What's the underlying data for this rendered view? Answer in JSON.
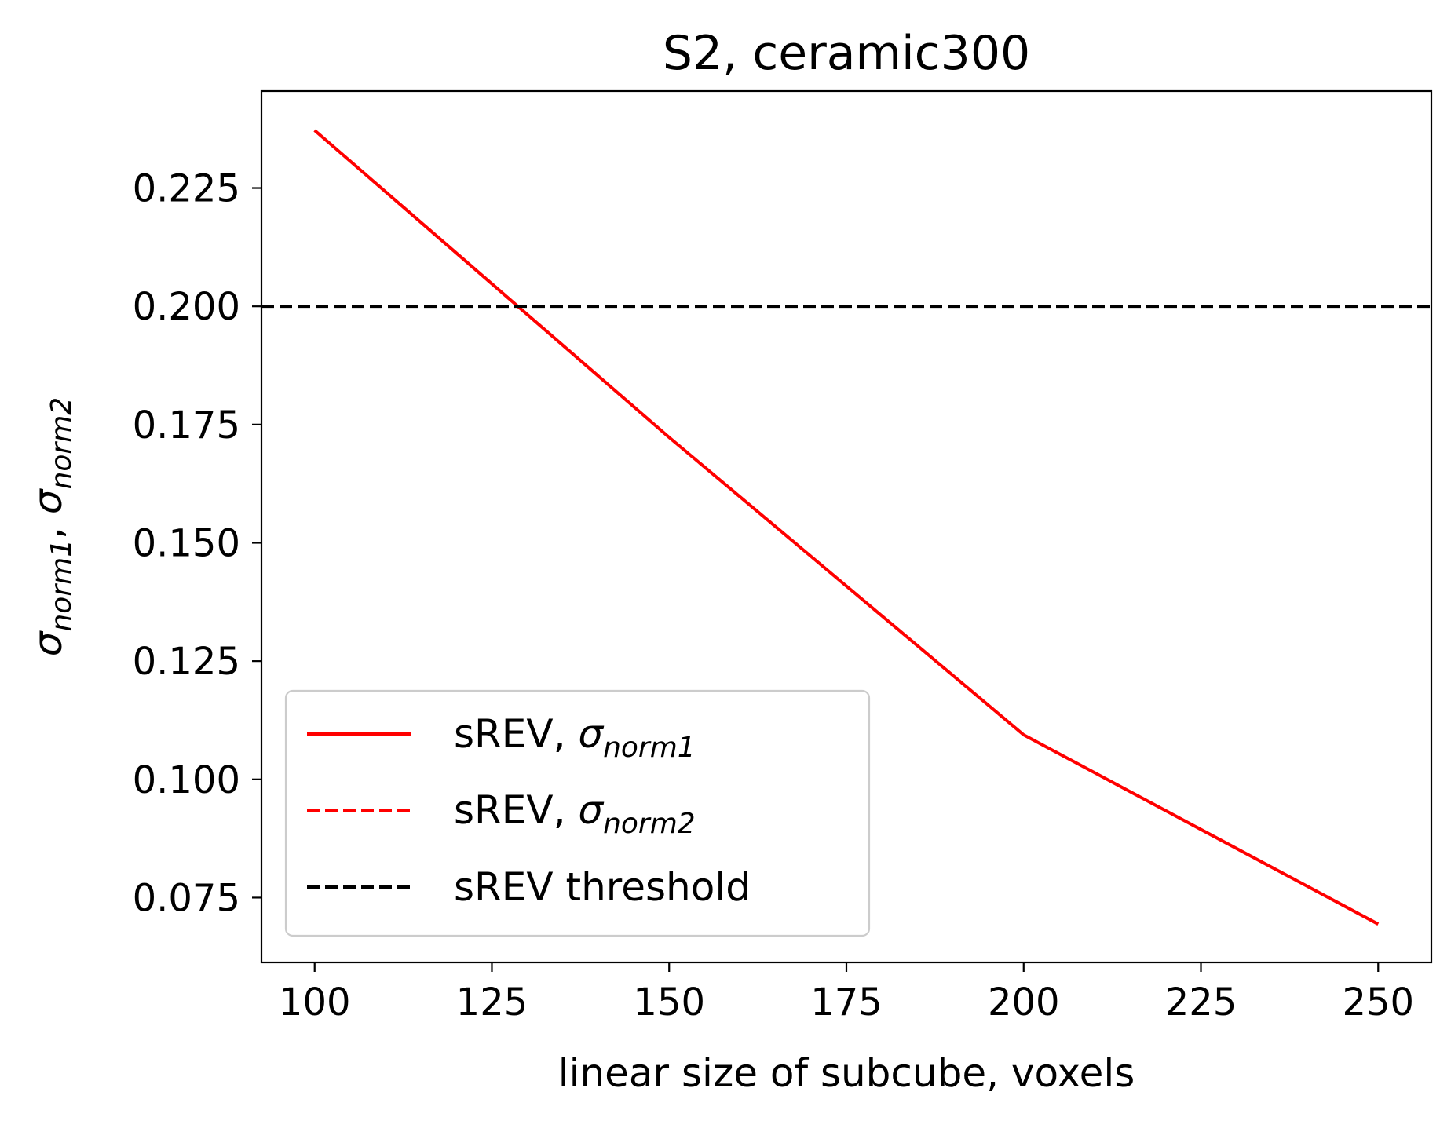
{
  "chart_data": {
    "type": "line",
    "title": "S2, ceramic300",
    "xlabel": "linear size of subcube, voxels",
    "ylabel": "σnorm1, σnorm2",
    "ylabel_parts": {
      "sym1": "σ",
      "sub1": "norm1",
      "sep": ", ",
      "sym2": "σ",
      "sub2": "norm2"
    },
    "xlim": [
      92.5,
      257.5
    ],
    "ylim": [
      0.0613,
      0.2455
    ],
    "x_ticks": [
      100,
      125,
      150,
      175,
      200,
      225,
      250
    ],
    "y_ticks": [
      0.075,
      0.1,
      0.125,
      0.15,
      0.175,
      0.2,
      0.225
    ],
    "x_tick_labels": [
      "100",
      "125",
      "150",
      "175",
      "200",
      "225",
      "250"
    ],
    "y_tick_labels": [
      "0.075",
      "0.100",
      "0.125",
      "0.150",
      "0.175",
      "0.200",
      "0.225"
    ],
    "grid": false,
    "legend_position": "lower-left",
    "series": [
      {
        "name": "sREV, σnorm1",
        "label_text": "sREV, ",
        "label_sym": "σ",
        "label_sub": "norm1",
        "style": "solid",
        "color": "#ff0000",
        "x": [
          100,
          150,
          200,
          250
        ],
        "y": [
          0.2372,
          0.1723,
          0.1094,
          0.0694
        ]
      },
      {
        "name": "sREV, σnorm2",
        "label_text": "sREV, ",
        "label_sym": "σ",
        "label_sub": "norm2",
        "style": "dashed",
        "color": "#ff0000",
        "x": [],
        "y": []
      },
      {
        "name": "sREV threshold",
        "label_text": "sREV threshold",
        "label_sym": "",
        "label_sub": "",
        "style": "dashed",
        "color": "#000000",
        "hline": 0.2
      }
    ]
  }
}
